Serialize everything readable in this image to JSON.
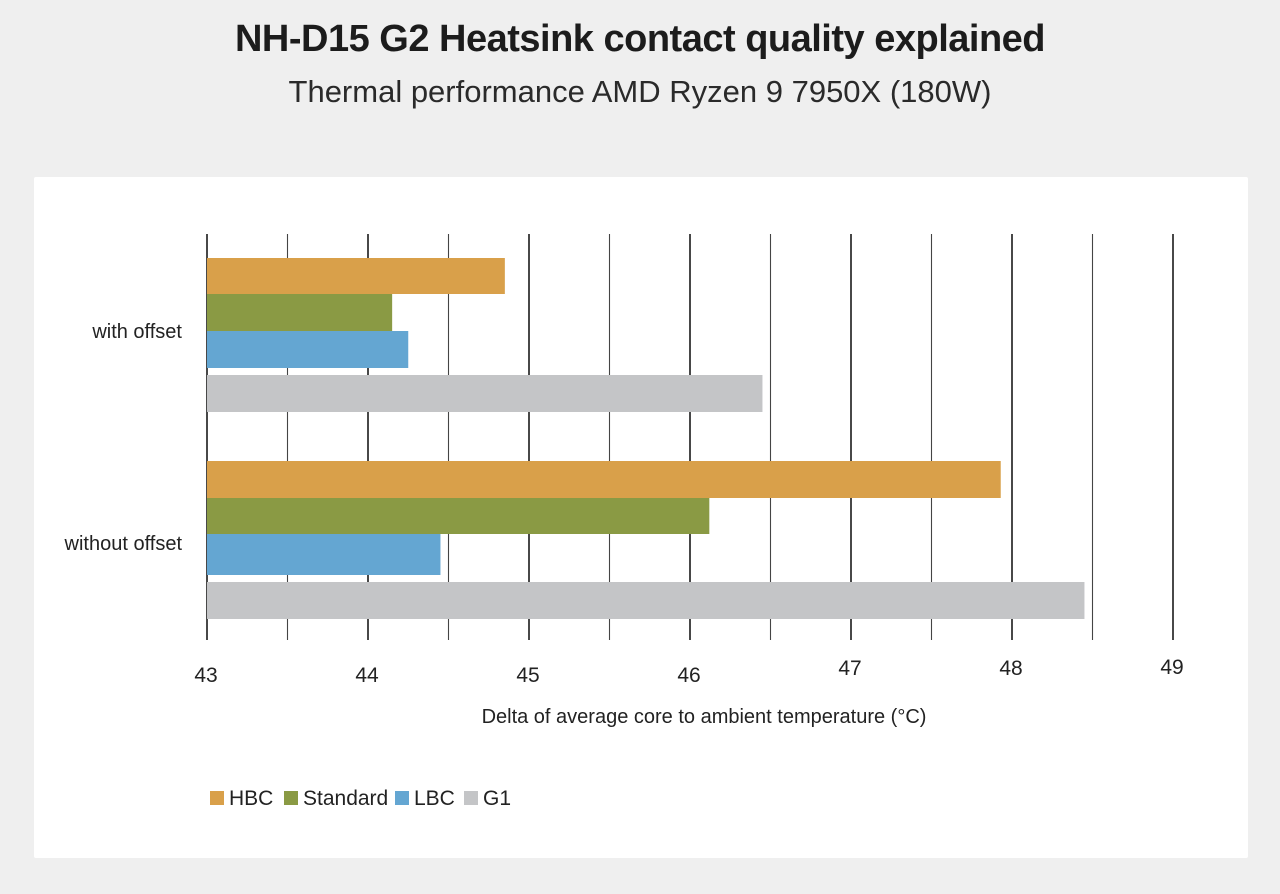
{
  "title": "NH-D15 G2 Heatsink contact quality explained",
  "subtitle": "Thermal performance AMD Ryzen 9 7950X (180W)",
  "chart_data": {
    "type": "bar",
    "orientation": "horizontal",
    "categories": [
      "with offset",
      "without offset"
    ],
    "series": [
      {
        "name": "HBC",
        "color": "#d9a04a",
        "values": [
          44.85,
          47.93
        ]
      },
      {
        "name": "Standard",
        "color": "#8a9a44",
        "values": [
          44.15,
          46.12
        ]
      },
      {
        "name": "LBC",
        "color": "#64a6d2",
        "values": [
          44.25,
          44.45
        ]
      },
      {
        "name": "G1",
        "color": "#c4c5c7",
        "values": [
          46.45,
          48.45
        ]
      }
    ],
    "xlabel": "Delta of average core to ambient temperature (°C)",
    "ylabel": "",
    "xlim": [
      43,
      49
    ],
    "xticks": [
      "43",
      "44",
      "45",
      "46",
      "47",
      "48",
      "49"
    ],
    "grid": true,
    "legend_position": "bottom-left"
  }
}
